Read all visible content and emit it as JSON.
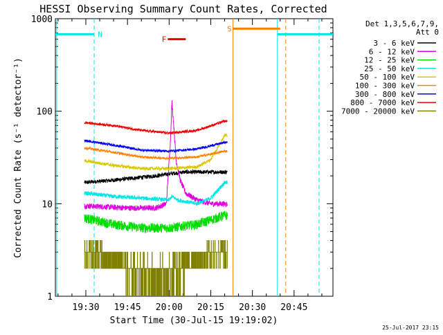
{
  "chart_data": {
    "type": "line",
    "title": "HESSI Observing Summary Count Rates, Corrected",
    "xlabel": "Start Time (30-Jul-15 19:19:02)",
    "ylabel": "Corrected Count Rate (s⁻¹ detector⁻¹)",
    "yscale": "log",
    "ylim": [
      1,
      1000
    ],
    "xlim": [
      "19:19:02",
      "20:59:00"
    ],
    "x_ticks": [
      "19:30",
      "19:45",
      "20:00",
      "20:15",
      "20:30",
      "20:45"
    ],
    "y_ticks": [
      "1",
      "10",
      "100",
      "1000"
    ],
    "grid": false,
    "legend": {
      "position": "right",
      "header": [
        "Det 1,3,5,6,7,9,",
        "Att 0"
      ],
      "entries": [
        {
          "label": "3 - 6 keV",
          "color": "#000000"
        },
        {
          "label": "6 - 12 keV",
          "color": "#e000e0"
        },
        {
          "label": "12 - 25 keV",
          "color": "#00dd00"
        },
        {
          "label": "25 - 50 keV",
          "color": "#00e5e5"
        },
        {
          "label": "50 - 100 keV",
          "color": "#d8c800"
        },
        {
          "label": "100 - 300 keV",
          "color": "#ff8000"
        },
        {
          "label": "300 - 800 keV",
          "color": "#0000ff"
        },
        {
          "label": "800 - 7000 keV",
          "color": "#ee0000"
        },
        {
          "label": "7000 - 20000 keV",
          "color": "#808000"
        }
      ]
    },
    "series": [
      {
        "name": "3 - 6 keV",
        "color": "#000000",
        "noise": 0.05,
        "points": [
          [
            "19:30:00",
            17
          ],
          [
            "19:40:00",
            18
          ],
          [
            "19:55:00",
            20
          ],
          [
            "20:05:00",
            22
          ],
          [
            "20:15:00",
            22
          ],
          [
            "20:20:00",
            22
          ]
        ]
      },
      {
        "name": "6 - 12 keV",
        "color": "#e000e0",
        "noise": 0.07,
        "points": [
          [
            "19:30:00",
            9.5
          ],
          [
            "19:45:00",
            9
          ],
          [
            "19:55:00",
            9
          ],
          [
            "19:59:00",
            10
          ],
          [
            "20:00:30",
            50
          ],
          [
            "20:01:00",
            128
          ],
          [
            "20:01:40",
            70
          ],
          [
            "20:02:30",
            30
          ],
          [
            "20:04:00",
            18
          ],
          [
            "20:06:00",
            13
          ],
          [
            "20:10:00",
            11
          ],
          [
            "20:15:00",
            10
          ],
          [
            "20:20:00",
            10
          ]
        ]
      },
      {
        "name": "12 - 25 keV",
        "color": "#00dd00",
        "noise": 0.12,
        "points": [
          [
            "19:30:00",
            7
          ],
          [
            "19:40:00",
            6
          ],
          [
            "19:50:00",
            5.5
          ],
          [
            "20:00:00",
            5.5
          ],
          [
            "20:10:00",
            6
          ],
          [
            "20:20:00",
            7.5
          ]
        ]
      },
      {
        "name": "25 - 50 keV",
        "color": "#00e5e5",
        "noise": 0.05,
        "points": [
          [
            "19:30:00",
            13
          ],
          [
            "19:40:00",
            12
          ],
          [
            "19:50:00",
            11.5
          ],
          [
            "20:00:00",
            11
          ],
          [
            "20:01:00",
            12
          ],
          [
            "20:03:00",
            11
          ],
          [
            "20:10:00",
            10
          ],
          [
            "20:15:00",
            11.5
          ],
          [
            "20:20:00",
            17
          ]
        ]
      },
      {
        "name": "50 - 100 keV",
        "color": "#d8c800",
        "noise": 0.04,
        "points": [
          [
            "19:30:00",
            29
          ],
          [
            "19:40:00",
            26
          ],
          [
            "19:50:00",
            24
          ],
          [
            "20:00:00",
            24
          ],
          [
            "20:10:00",
            25
          ],
          [
            "20:15:00",
            30
          ],
          [
            "20:20:00",
            55
          ]
        ]
      },
      {
        "name": "100 - 300 keV",
        "color": "#ff8000",
        "noise": 0.03,
        "points": [
          [
            "19:30:00",
            40
          ],
          [
            "19:40:00",
            36
          ],
          [
            "19:50:00",
            32
          ],
          [
            "20:00:00",
            31
          ],
          [
            "20:10:00",
            32
          ],
          [
            "20:20:00",
            37
          ]
        ]
      },
      {
        "name": "300 - 800 keV",
        "color": "#0000ff",
        "noise": 0.03,
        "points": [
          [
            "19:30:00",
            48
          ],
          [
            "19:40:00",
            43
          ],
          [
            "19:50:00",
            38
          ],
          [
            "20:00:00",
            37
          ],
          [
            "20:10:00",
            39
          ],
          [
            "20:20:00",
            46
          ]
        ]
      },
      {
        "name": "800 - 7000 keV",
        "color": "#ee0000",
        "noise": 0.03,
        "points": [
          [
            "19:30:00",
            75
          ],
          [
            "19:40:00",
            70
          ],
          [
            "19:50:00",
            62
          ],
          [
            "20:00:00",
            58
          ],
          [
            "20:10:00",
            62
          ],
          [
            "20:20:00",
            78
          ]
        ]
      },
      {
        "name": "7000 - 20000 keV",
        "color": "#808000",
        "noise": 0.0,
        "levels": [
          1,
          2,
          3,
          4
        ],
        "points": [
          [
            "19:30:00",
            3
          ],
          [
            "19:35:00",
            3
          ],
          [
            "19:45:00",
            2
          ],
          [
            "19:55:00",
            1.8
          ],
          [
            "20:00:00",
            1.8
          ],
          [
            "20:08:00",
            2.5
          ],
          [
            "20:15:00",
            3
          ],
          [
            "20:20:00",
            3
          ]
        ]
      }
    ],
    "bars": [
      {
        "label": "N",
        "color": "#00e5e5",
        "y": 680,
        "spans": [
          [
            "19:19:02",
            "19:33:00"
          ],
          [
            "20:39:00",
            "20:59:00"
          ]
        ]
      },
      {
        "label": "F",
        "color": "#ee0000",
        "y": 600,
        "spans": [
          [
            "19:59:30",
            "20:06:00"
          ]
        ]
      },
      {
        "label": "S",
        "color": "#ff8000",
        "y": 780,
        "spans": [
          [
            "20:23:00",
            "20:40:00"
          ]
        ]
      }
    ],
    "markers": [
      {
        "time": "19:19:30",
        "color": "#00e5e5",
        "style": "solid"
      },
      {
        "time": "19:33:00",
        "color": "#00e5e5",
        "style": "dashed"
      },
      {
        "time": "20:23:00",
        "color": "#ff8000",
        "style": "solid"
      },
      {
        "time": "20:39:00",
        "color": "#00e5e5",
        "style": "solid"
      },
      {
        "time": "20:42:00",
        "color": "#ff8000",
        "style": "dashed"
      },
      {
        "time": "20:54:00",
        "color": "#00e5e5",
        "style": "dashed"
      }
    ],
    "data_window": [
      "19:29:30",
      "20:21:00"
    ],
    "footer": "25-Jul-2017 23:15"
  }
}
